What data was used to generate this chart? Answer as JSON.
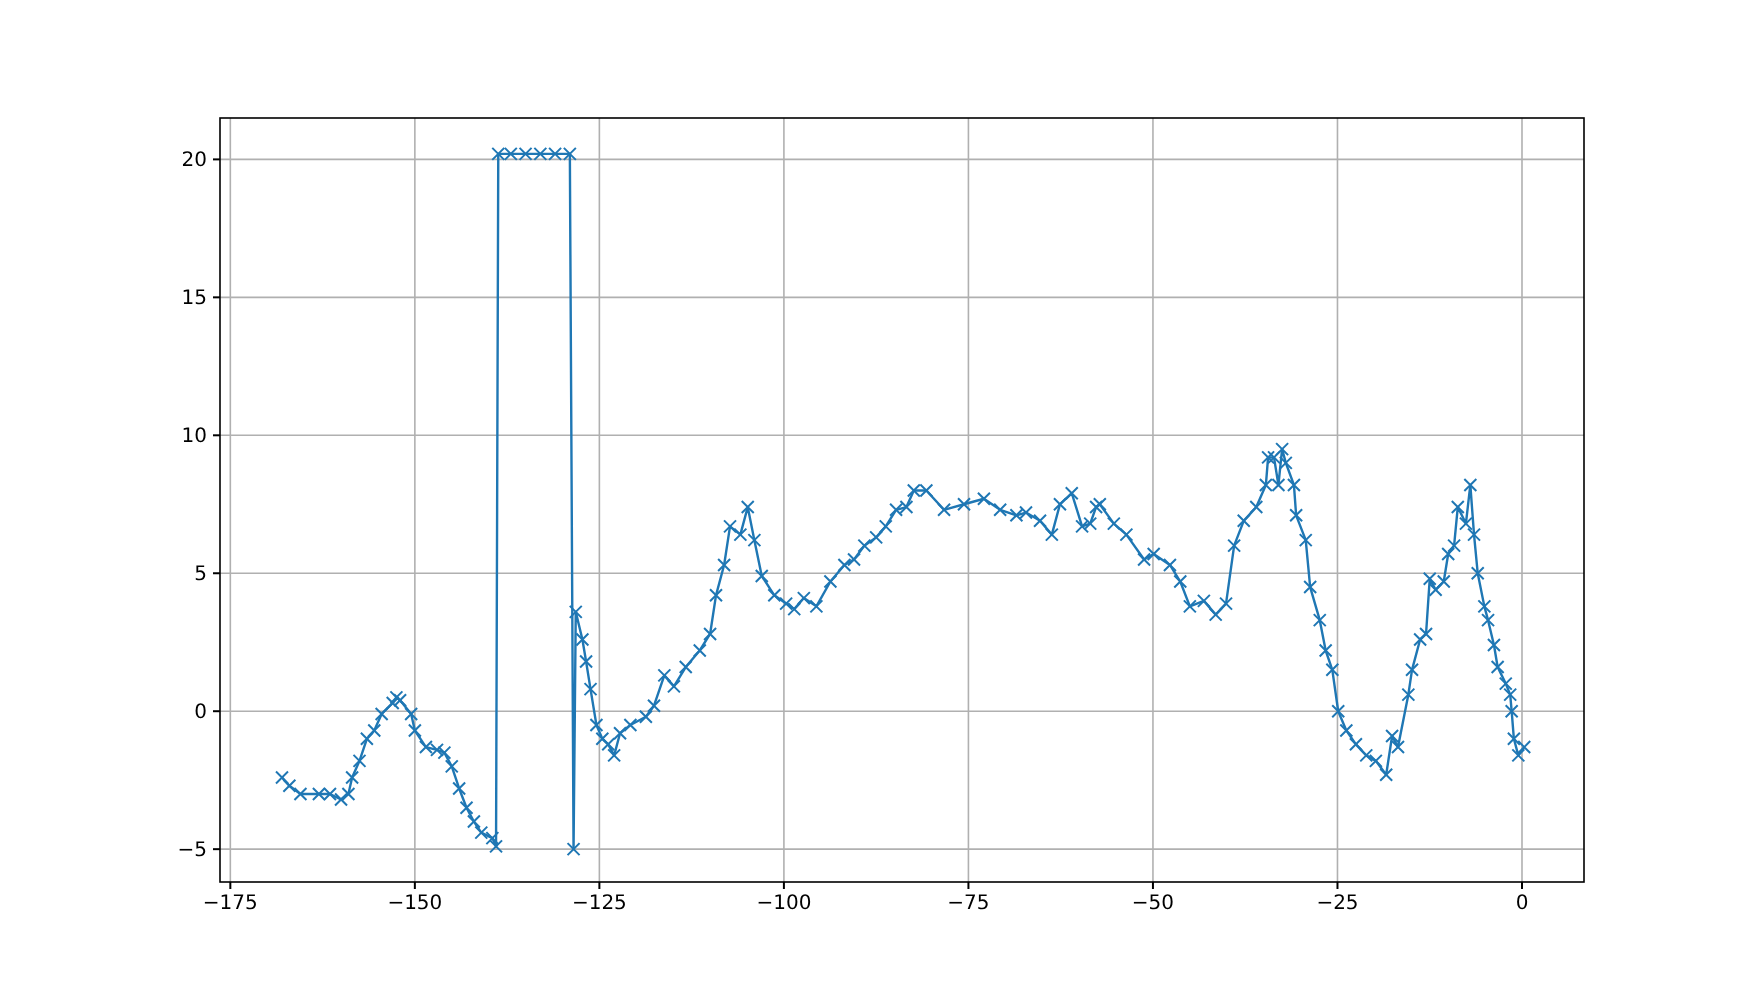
{
  "chart_data": {
    "type": "line",
    "marker": "cross",
    "line_style": "solid",
    "grid": true,
    "xlim": [
      -176.4,
      8.4
    ],
    "ylim": [
      -6.19,
      21.5
    ],
    "xticks": [
      {
        "value": -175,
        "label": "−175"
      },
      {
        "value": -150,
        "label": "−150"
      },
      {
        "value": -125,
        "label": "−125"
      },
      {
        "value": -100,
        "label": "−100"
      },
      {
        "value": -75,
        "label": "−75"
      },
      {
        "value": -50,
        "label": "−50"
      },
      {
        "value": -25,
        "label": "−25"
      },
      0
    ],
    "yticks": [
      {
        "value": -5,
        "label": "−5"
      },
      0,
      5,
      10,
      15,
      20
    ],
    "series": [
      {
        "color": "#1f77b4",
        "x": [
          -168,
          -167,
          -165.5,
          -163,
          -161.5,
          -160,
          -159,
          -158.5,
          -157.5,
          -156.5,
          -155.5,
          -154.5,
          -153,
          -152.5,
          -152,
          -150.5,
          -150,
          -148.5,
          -147,
          -146,
          -145,
          -144,
          -143,
          -142,
          -141,
          -139.5,
          -139,
          -138.7,
          -137,
          -135,
          -133,
          -131,
          -129,
          -128.5,
          -128.2,
          -127.3,
          -126.8,
          -126.2,
          -125.4,
          -124.6,
          -123.8,
          -123,
          -122.2,
          -120.8,
          -118.7,
          -117.6,
          -116.2,
          -114.9,
          -113.3,
          -111.4,
          -110,
          -109.2,
          -108.1,
          -107.3,
          -105.9,
          -104.9,
          -104,
          -103,
          -101.3,
          -99.7,
          -98.6,
          -97.3,
          -95.6,
          -93.7,
          -91.8,
          -90.5,
          -89.1,
          -87.5,
          -86.2,
          -84.8,
          -83.4,
          -82.4,
          -80.7,
          -78.3,
          -75.6,
          -72.9,
          -70.7,
          -68.5,
          -67.2,
          -65.3,
          -63.7,
          -62.6,
          -61,
          -59.6,
          -58.5,
          -57.7,
          -57.2,
          -55.3,
          -53.6,
          -51.2,
          -49.9,
          -47.7,
          -46.3,
          -45,
          -43.1,
          -41.5,
          -40.1,
          -39,
          -37.7,
          -36,
          -34.7,
          -34.4,
          -33.6,
          -33,
          -32.5,
          -32,
          -30.9,
          -30.6,
          -29.3,
          -28.7,
          -27.4,
          -26.6,
          -25.7,
          -24.9,
          -23.8,
          -22.5,
          -21.1,
          -19.8,
          -18.4,
          -17.6,
          -16.8,
          -15.4,
          -14.9,
          -13.8,
          -13,
          -12.5,
          -11.7,
          -10.6,
          -10,
          -9.2,
          -8.7,
          -7.6,
          -7,
          -6.5,
          -6,
          -5.1,
          -4.6,
          -3.8,
          -3.3,
          -2.2,
          -1.6,
          -1.4,
          -1.1,
          -0.5,
          0.3
        ],
        "values": [
          -2.4,
          -2.7,
          -3.0,
          -3.0,
          -3.0,
          -3.2,
          -3.0,
          -2.4,
          -1.8,
          -1.0,
          -0.7,
          -0.1,
          0.3,
          0.5,
          0.4,
          -0.1,
          -0.7,
          -1.3,
          -1.4,
          -1.5,
          -2.0,
          -2.8,
          -3.5,
          -4.0,
          -4.4,
          -4.6,
          -4.9,
          20.2,
          20.2,
          20.2,
          20.2,
          20.2,
          20.2,
          -5.0,
          3.6,
          2.6,
          1.8,
          0.8,
          -0.5,
          -1.0,
          -1.2,
          -1.6,
          -0.8,
          -0.5,
          -0.2,
          0.2,
          1.3,
          0.9,
          1.6,
          2.2,
          2.8,
          4.2,
          5.3,
          6.7,
          6.4,
          7.4,
          6.2,
          4.9,
          4.2,
          3.9,
          3.7,
          4.1,
          3.8,
          4.7,
          5.3,
          5.5,
          6.0,
          6.3,
          6.7,
          7.3,
          7.4,
          8.0,
          8.0,
          7.3,
          7.5,
          7.7,
          7.3,
          7.1,
          7.2,
          6.9,
          6.4,
          7.5,
          7.9,
          6.7,
          6.8,
          7.4,
          7.5,
          6.8,
          6.4,
          5.5,
          5.7,
          5.3,
          4.7,
          3.8,
          4.0,
          3.5,
          3.9,
          6.0,
          6.9,
          7.4,
          8.2,
          9.2,
          9.2,
          8.2,
          9.5,
          9.0,
          8.2,
          7.1,
          6.2,
          4.5,
          3.3,
          2.2,
          1.5,
          0.0,
          -0.7,
          -1.2,
          -1.6,
          -1.8,
          -2.3,
          -0.9,
          -1.3,
          0.6,
          1.5,
          2.6,
          2.8,
          4.8,
          4.4,
          4.7,
          5.7,
          6.0,
          7.4,
          6.8,
          8.2,
          6.4,
          5.0,
          3.8,
          3.3,
          2.4,
          1.6,
          1.0,
          0.6,
          0.0,
          -1.0,
          -1.6,
          -1.3
        ]
      }
    ]
  }
}
